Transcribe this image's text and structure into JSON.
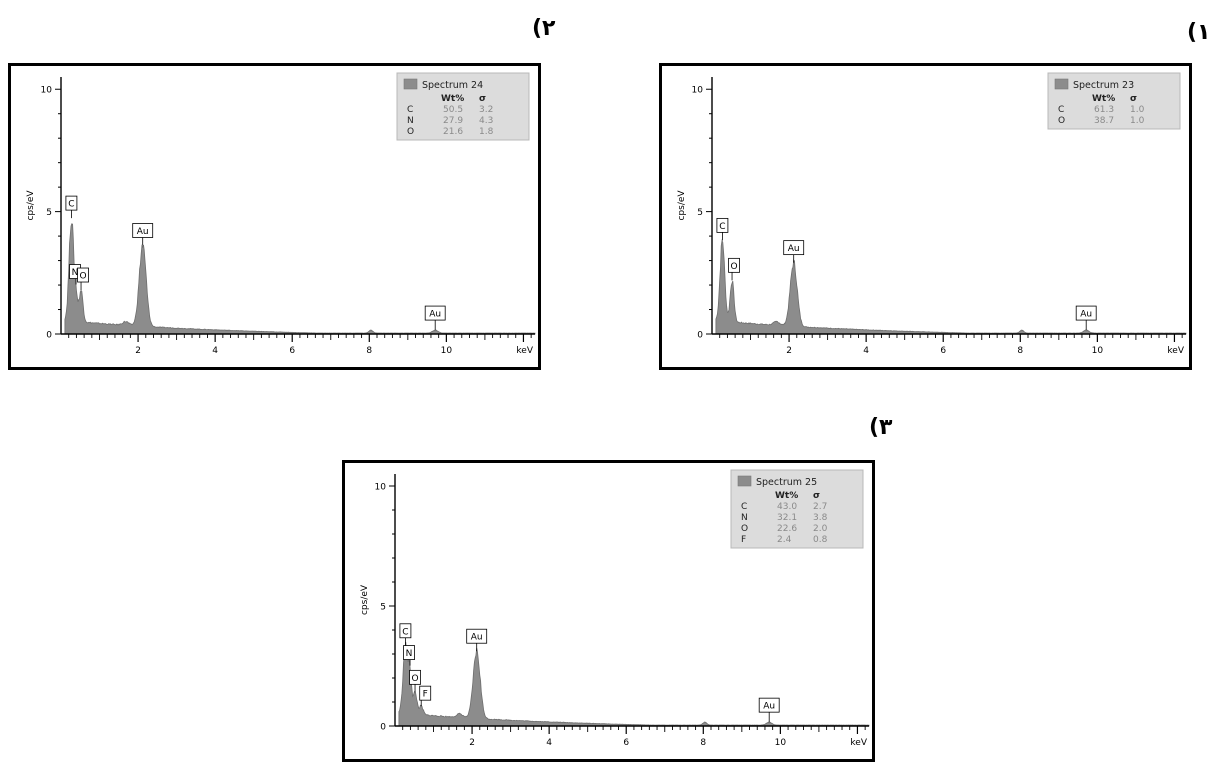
{
  "panel_labels": [
    "(۱",
    "(۲",
    "(۳"
  ],
  "chart_data": [
    {
      "panel": "(۱",
      "type": "area",
      "title": "Spectrum 23",
      "xlabel": "keV",
      "ylabel": "cps/eV",
      "xlim": [
        0,
        12.3
      ],
      "ylim": [
        0,
        10.5
      ],
      "xticks": [
        2,
        4,
        6,
        8,
        10
      ],
      "yticks": [
        0,
        5,
        10
      ],
      "grid": false,
      "legend": "top-right",
      "series_color": "#8c8c8c",
      "table": {
        "header": [
          "Wt%",
          "σ"
        ],
        "rows": [
          {
            "element": "C",
            "wt": "61.3",
            "sigma": "1.0"
          },
          {
            "element": "O",
            "wt": "38.7",
            "sigma": "1.0"
          }
        ]
      },
      "peaks": [
        {
          "label": "C",
          "x": 0.27,
          "y": 3.3,
          "w": 0.06
        },
        {
          "label": "O",
          "x": 0.52,
          "y": 1.7,
          "w": 0.05
        },
        {
          "label": "Au",
          "x": 2.12,
          "y": 2.6,
          "w": 0.09
        },
        {
          "label": "",
          "x": 1.68,
          "y": 0.15,
          "w": 0.08
        },
        {
          "label": "",
          "x": 8.04,
          "y": 0.12,
          "w": 0.05
        },
        {
          "label": "Au",
          "x": 9.71,
          "y": 0.12,
          "w": 0.07
        }
      ]
    },
    {
      "panel": "(۲",
      "type": "area",
      "title": "Spectrum 24",
      "xlabel": "keV",
      "ylabel": "cps/eV",
      "xlim": [
        0,
        12.3
      ],
      "ylim": [
        0,
        10.5
      ],
      "xticks": [
        2,
        4,
        6,
        8,
        10
      ],
      "yticks": [
        0,
        5,
        10
      ],
      "grid": false,
      "legend": "top-right",
      "series_color": "#8c8c8c",
      "table": {
        "header": [
          "Wt%",
          "σ"
        ],
        "rows": [
          {
            "element": "C",
            "wt": "50.5",
            "sigma": "3.2"
          },
          {
            "element": "N",
            "wt": "27.9",
            "sigma": "4.3"
          },
          {
            "element": "O",
            "wt": "21.6",
            "sigma": "1.8"
          }
        ]
      },
      "peaks": [
        {
          "label": "C",
          "x": 0.27,
          "y": 4.2,
          "w": 0.06
        },
        {
          "label": "N",
          "x": 0.39,
          "y": 0.9,
          "w": 0.04
        },
        {
          "label": "O",
          "x": 0.52,
          "y": 1.3,
          "w": 0.05
        },
        {
          "label": "Au",
          "x": 2.12,
          "y": 3.3,
          "w": 0.09
        },
        {
          "label": "",
          "x": 1.68,
          "y": 0.15,
          "w": 0.08
        },
        {
          "label": "",
          "x": 8.04,
          "y": 0.12,
          "w": 0.05
        },
        {
          "label": "Au",
          "x": 9.71,
          "y": 0.12,
          "w": 0.07
        }
      ]
    },
    {
      "panel": "(۳",
      "type": "area",
      "title": "Spectrum 25",
      "xlabel": "keV",
      "ylabel": "cps/eV",
      "xlim": [
        0,
        12.3
      ],
      "ylim": [
        0,
        10.5
      ],
      "xticks": [
        2,
        4,
        6,
        8,
        10
      ],
      "yticks": [
        0,
        5,
        10
      ],
      "grid": false,
      "legend": "top-right",
      "series_color": "#8c8c8c",
      "table": {
        "header": [
          "Wt%",
          "σ"
        ],
        "rows": [
          {
            "element": "C",
            "wt": "43.0",
            "sigma": "2.7"
          },
          {
            "element": "N",
            "wt": "32.1",
            "sigma": "3.8"
          },
          {
            "element": "O",
            "wt": "22.6",
            "sigma": "2.0"
          },
          {
            "element": "F",
            "wt": "2.4",
            "sigma": "0.8"
          }
        ]
      },
      "peaks": [
        {
          "label": "C",
          "x": 0.27,
          "y": 2.8,
          "w": 0.06
        },
        {
          "label": "N",
          "x": 0.39,
          "y": 1.6,
          "w": 0.04
        },
        {
          "label": "O",
          "x": 0.52,
          "y": 0.9,
          "w": 0.05
        },
        {
          "label": "F",
          "x": 0.68,
          "y": 0.35,
          "w": 0.05
        },
        {
          "label": "Au",
          "x": 2.12,
          "y": 2.8,
          "w": 0.09
        },
        {
          "label": "",
          "x": 1.68,
          "y": 0.15,
          "w": 0.08
        },
        {
          "label": "",
          "x": 8.04,
          "y": 0.12,
          "w": 0.05
        },
        {
          "label": "Au",
          "x": 9.71,
          "y": 0.12,
          "w": 0.07
        }
      ]
    }
  ]
}
